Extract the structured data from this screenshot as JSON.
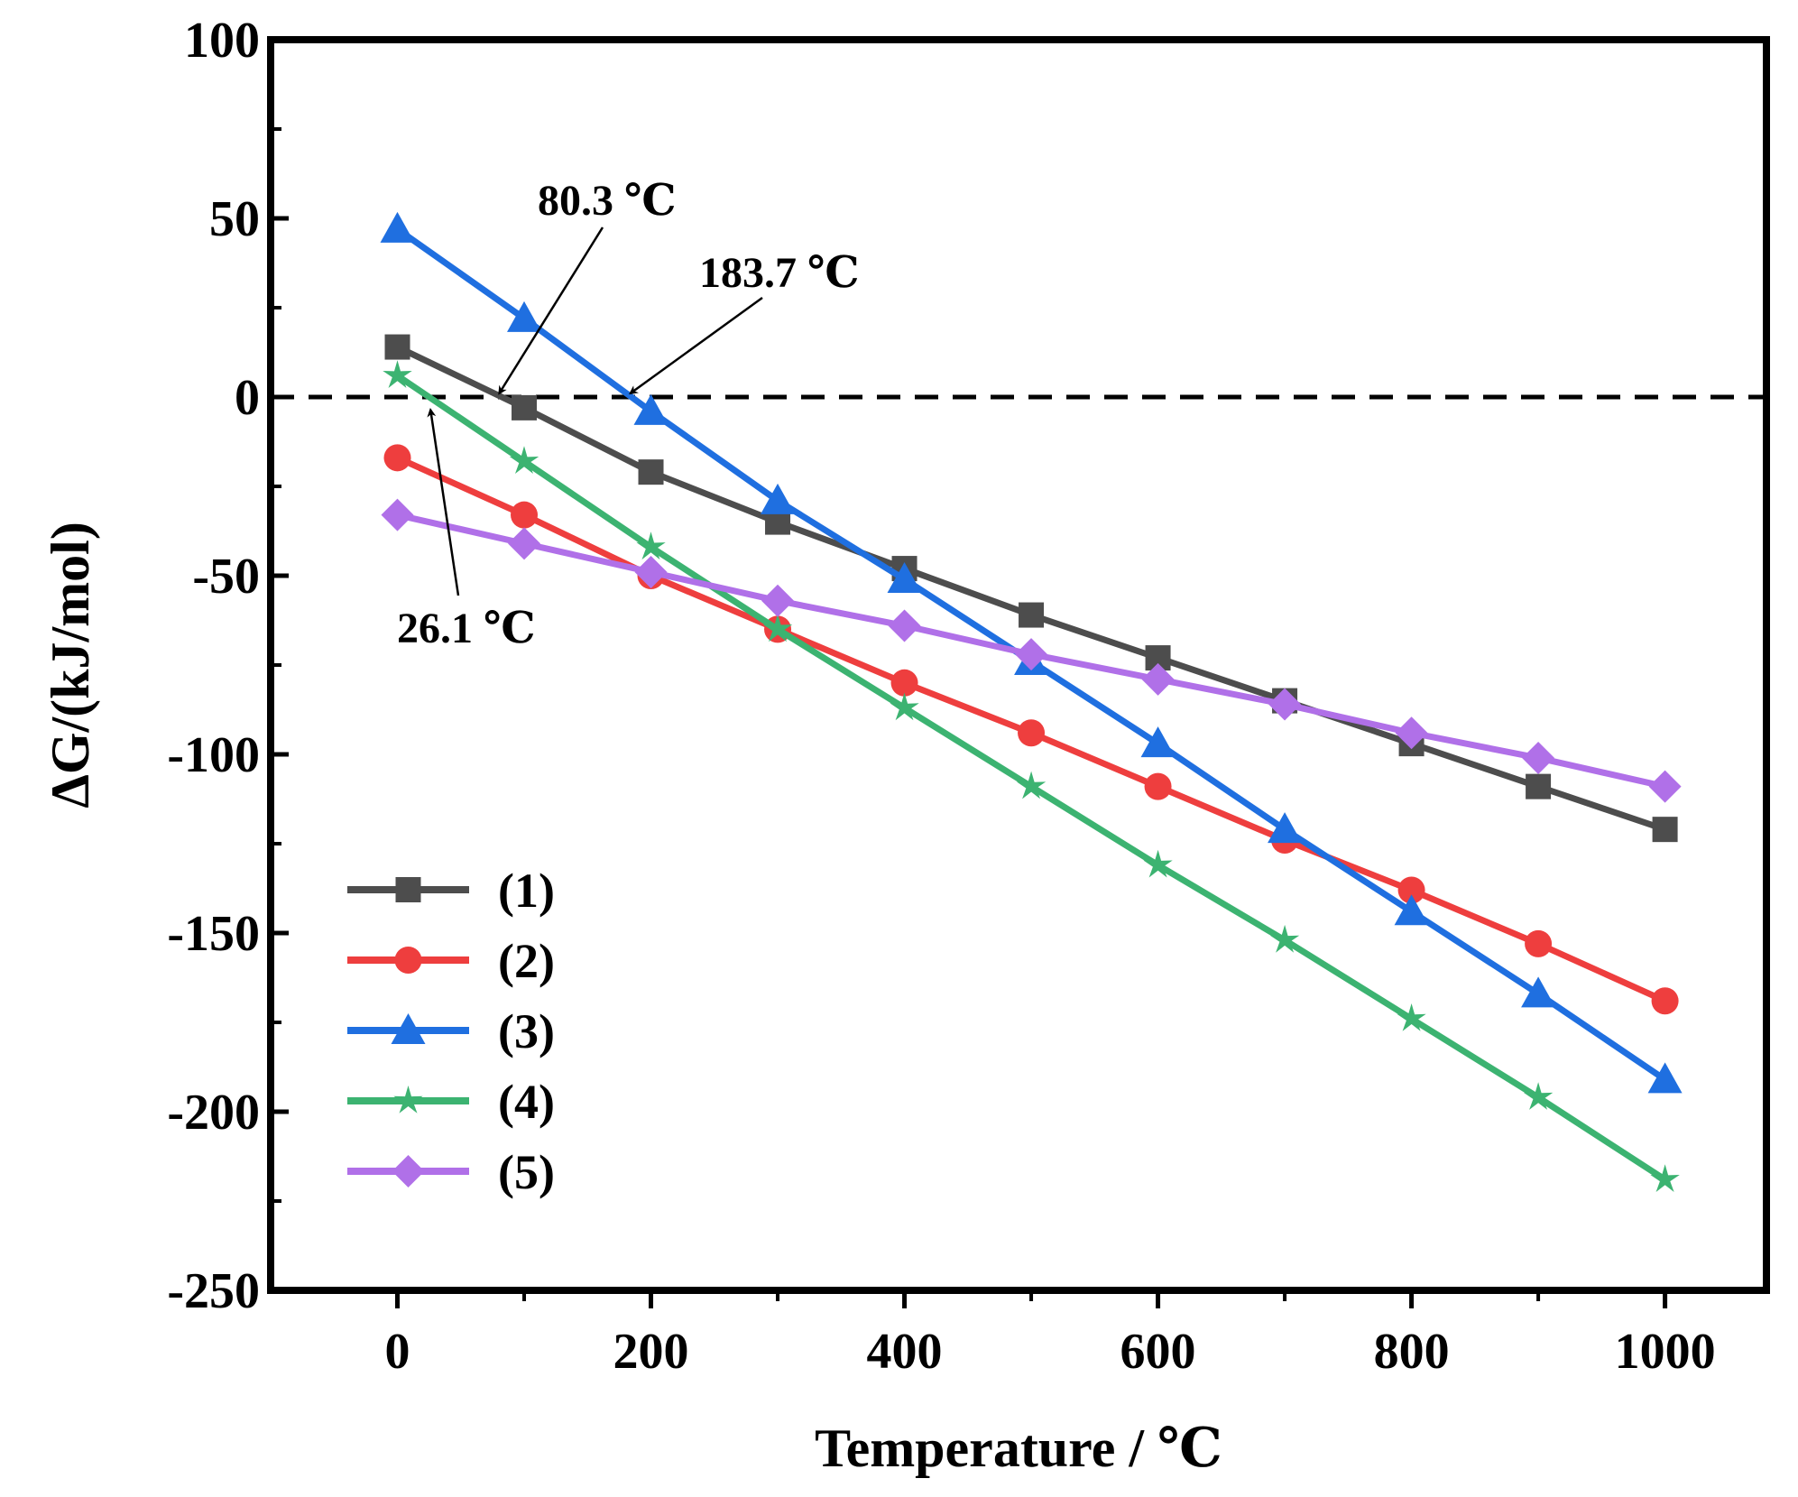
{
  "chart_data": {
    "type": "line",
    "title": "",
    "xlabel": "Temperature / ℃",
    "ylabel": "ΔG/(kJ/mol)",
    "xlim": [
      -100,
      1080
    ],
    "ylim": [
      -250,
      100
    ],
    "xticks": [
      0,
      200,
      400,
      600,
      800,
      1000
    ],
    "yticks": [
      100,
      50,
      0,
      -50,
      -100,
      -150,
      -200,
      -250
    ],
    "xtick_labels": [
      "0",
      "200",
      "400",
      "600",
      "800",
      "1000"
    ],
    "ytick_labels": [
      "100",
      "50",
      "0",
      "-50",
      "-100",
      "-150",
      "-200",
      "-250"
    ],
    "grid": false,
    "legend_position": "bottom-left",
    "reference_line": {
      "y": 0,
      "style": "dashed",
      "color": "#000000"
    },
    "x": [
      0,
      100,
      200,
      300,
      400,
      500,
      600,
      700,
      800,
      900,
      1000
    ],
    "series": [
      {
        "name": "(1)",
        "label": "(1)",
        "color": "#4d4d4d",
        "marker": "square",
        "values": [
          14,
          -3,
          -21,
          -35,
          -48,
          -61,
          -73,
          -85,
          -97,
          -109,
          -121
        ]
      },
      {
        "name": "(2)",
        "label": "(2)",
        "color": "#ee3e3e",
        "marker": "circle",
        "values": [
          -17,
          -33,
          -50,
          -65,
          -80,
          -94,
          -109,
          -124,
          -138,
          -153,
          -169
        ]
      },
      {
        "name": "(3)",
        "label": "(3)",
        "color": "#1f6fe0",
        "marker": "triangle",
        "values": [
          47,
          22,
          -4,
          -29,
          -51,
          -74,
          -97,
          -121,
          -144,
          -167,
          -191
        ]
      },
      {
        "name": "(4)",
        "label": "(4)",
        "color": "#3cb371",
        "marker": "star",
        "values": [
          6,
          -18,
          -42,
          -65,
          -87,
          -109,
          -131,
          -152,
          -174,
          -196,
          -219
        ]
      },
      {
        "name": "(5)",
        "label": "(5)",
        "color": "#b070e8",
        "marker": "diamond",
        "values": [
          -33,
          -41,
          -49,
          -57,
          -64,
          -72,
          -79,
          -86,
          -94,
          -101,
          -109
        ]
      }
    ],
    "annotations": [
      {
        "text": "80.3 ℃",
        "x": 80.3,
        "y": 0
      },
      {
        "text": "183.7 ℃",
        "x": 183.7,
        "y": 0
      },
      {
        "text": "26.1 ℃",
        "x": 26.1,
        "y": 0
      }
    ]
  }
}
